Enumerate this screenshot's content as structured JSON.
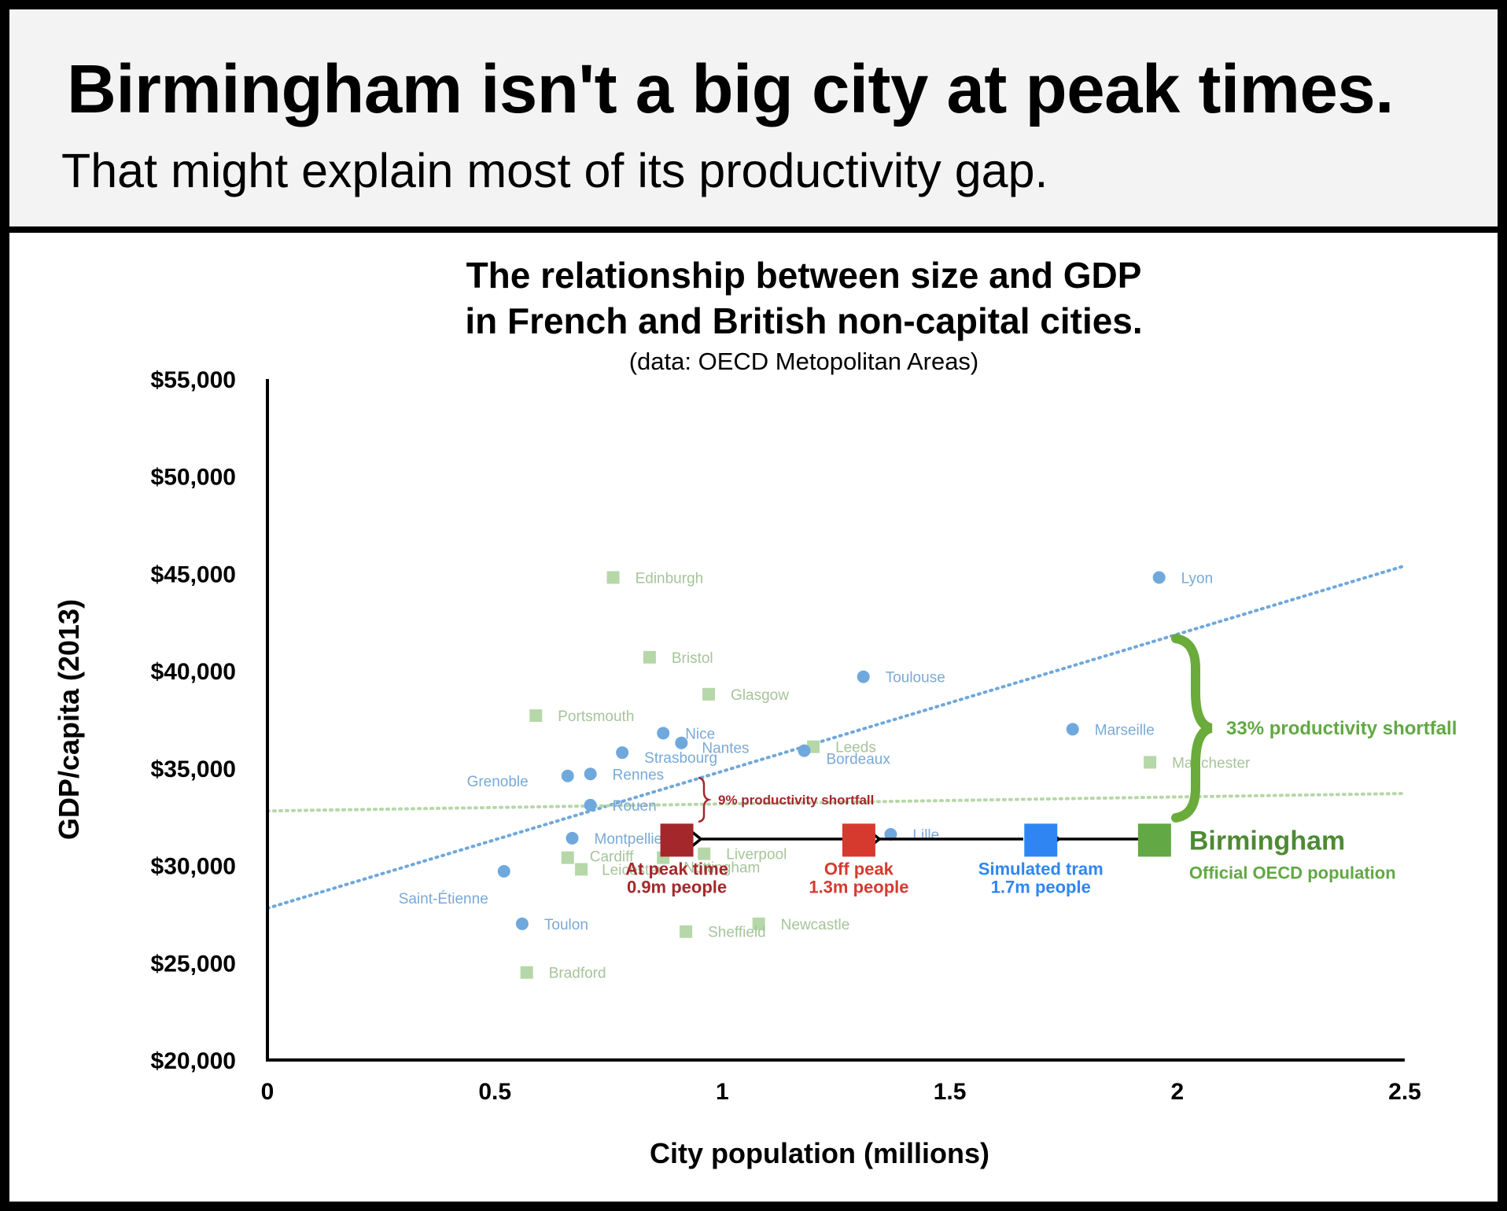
{
  "header": {
    "headline": "Birmingham isn't a big city at peak times.",
    "subheadline": "That might explain most of its productivity gap."
  },
  "chart_data": {
    "type": "scatter",
    "title_line1": "The relationship between size and GDP",
    "title_line2": "in French and British non-capital cities.",
    "subtitle": "(data: OECD Metopolitan Areas)",
    "xlabel": "City population (millions)",
    "ylabel": "GDP/capita (2013)",
    "xlim": [
      0,
      2.5
    ],
    "ylim": [
      20000,
      55000
    ],
    "x_ticks": [
      {
        "value": 0,
        "label": "0"
      },
      {
        "value": 0.5,
        "label": "0.5"
      },
      {
        "value": 1,
        "label": "1"
      },
      {
        "value": 1.5,
        "label": "1.5"
      },
      {
        "value": 2,
        "label": "2"
      },
      {
        "value": 2.5,
        "label": "2.5"
      }
    ],
    "y_ticks": [
      {
        "value": 55000,
        "label": "$55,000"
      },
      {
        "value": 50000,
        "label": "$50,000"
      },
      {
        "value": 45000,
        "label": "$45,000"
      },
      {
        "value": 40000,
        "label": "$40,000"
      },
      {
        "value": 35000,
        "label": "$35,000"
      },
      {
        "value": 30000,
        "label": "$30,000"
      },
      {
        "value": 25000,
        "label": "$25,000"
      },
      {
        "value": 20000,
        "label": "$20,000"
      }
    ],
    "colors": {
      "france": "#6fa8dc",
      "uk": "#b6d7a8",
      "trend_france": "#6fa8dc",
      "trend_uk": "#b6d7a8",
      "peak": "#a4282b",
      "offpeak": "#d63a2f",
      "tram": "#2f86f2",
      "birmingham": "#62a844"
    },
    "trendlines": [
      {
        "name": "france",
        "x": [
          0,
          2.5
        ],
        "y": [
          27800,
          45400
        ]
      },
      {
        "name": "uk",
        "x": [
          0,
          2.5
        ],
        "y": [
          32800,
          33700
        ]
      }
    ],
    "france": [
      {
        "label": "Lyon",
        "x": 1.96,
        "y": 44800
      },
      {
        "label": "Toulouse",
        "x": 1.31,
        "y": 39700
      },
      {
        "label": "Marseille",
        "x": 1.77,
        "y": 37000
      },
      {
        "label": "Nice",
        "x": 0.87,
        "y": 36800
      },
      {
        "label": "Nantes",
        "x": 0.91,
        "y": 36300
      },
      {
        "label": "Strasbourg",
        "x": 0.78,
        "y": 35800
      },
      {
        "label": "Bordeaux",
        "x": 1.18,
        "y": 35900
      },
      {
        "label": "Rennes",
        "x": 0.71,
        "y": 34700
      },
      {
        "label": "Grenoble",
        "x": 0.66,
        "y": 34600
      },
      {
        "label": "Rouen",
        "x": 0.71,
        "y": 33100
      },
      {
        "label": "Montpellier",
        "x": 0.67,
        "y": 31400
      },
      {
        "label": "Lille",
        "x": 1.37,
        "y": 31600
      },
      {
        "label": "Saint-Étienne",
        "x": 0.52,
        "y": 29700
      },
      {
        "label": "Toulon",
        "x": 0.56,
        "y": 27000
      }
    ],
    "uk": [
      {
        "label": "Edinburgh",
        "x": 0.76,
        "y": 44800
      },
      {
        "label": "Bristol",
        "x": 0.84,
        "y": 40700
      },
      {
        "label": "Glasgow",
        "x": 0.97,
        "y": 38800
      },
      {
        "label": "Portsmouth",
        "x": 0.59,
        "y": 37700
      },
      {
        "label": "Leeds",
        "x": 1.2,
        "y": 36100
      },
      {
        "label": "Manchester",
        "x": 1.94,
        "y": 35300
      },
      {
        "label": "Cardiff",
        "x": 0.66,
        "y": 30400
      },
      {
        "label": "Leicester",
        "x": 0.69,
        "y": 29800
      },
      {
        "label": "Nottingham",
        "x": 0.87,
        "y": 30400
      },
      {
        "label": "Liverpool",
        "x": 0.96,
        "y": 30600
      },
      {
        "label": "Newcastle",
        "x": 1.08,
        "y": 27000
      },
      {
        "label": "Sheffield",
        "x": 0.92,
        "y": 26600
      },
      {
        "label": "Bradford",
        "x": 0.57,
        "y": 24500
      }
    ],
    "birmingham_points": [
      {
        "key": "birmingham",
        "x": 1.95,
        "y": 31300,
        "line1": "Birmingham",
        "line2": "Official OECD population"
      },
      {
        "key": "tram",
        "x": 1.7,
        "y": 31300,
        "line1": "Simulated tram",
        "line2": "1.7m people"
      },
      {
        "key": "offpeak",
        "x": 1.3,
        "y": 31300,
        "line1": "Off peak",
        "line2": "1.3m people"
      },
      {
        "key": "peak",
        "x": 0.9,
        "y": 31300,
        "line1": "At peak time",
        "line2": "0.9m people"
      }
    ],
    "annotations": {
      "big_gap": "33% productivity shortfall",
      "small_gap": "9% productivity shortfall"
    }
  }
}
